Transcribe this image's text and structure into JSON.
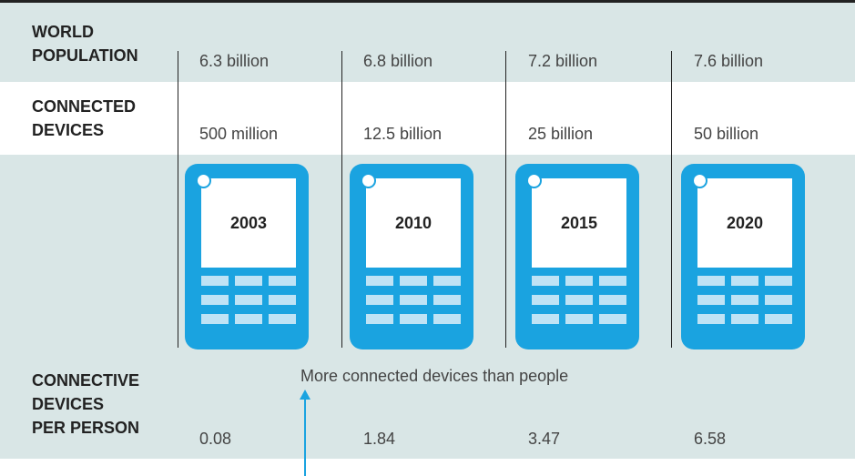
{
  "chart_data": {
    "type": "table",
    "row_labels": {
      "population": [
        "WORLD",
        "POPULATION"
      ],
      "devices": [
        "CONNECTED",
        "DEVICES"
      ],
      "per_person": [
        "CONNECTIVE",
        "DEVICES",
        "PER PERSON"
      ]
    },
    "columns": [
      {
        "year": "2003",
        "population": "6.3 billion",
        "devices": "500 million",
        "per_person": "0.08"
      },
      {
        "year": "2010",
        "population": "6.8 billion",
        "devices": "12.5 billion",
        "per_person": "1.84"
      },
      {
        "year": "2015",
        "population": "7.2 billion",
        "devices": "25 billion",
        "per_person": "3.47"
      },
      {
        "year": "2020",
        "population": "7.6 billion",
        "devices": "50 billion",
        "per_person": "6.58"
      }
    ],
    "annotation": "More connected devices than people"
  },
  "colors": {
    "band": "#d9e6e6",
    "phone": "#1aa3e0",
    "phone_keys": "#bfe3f5",
    "arrow": "#1aa3e0"
  },
  "icons": {
    "device": "mobile-phone-icon",
    "pointer": "arrow-up-icon"
  }
}
